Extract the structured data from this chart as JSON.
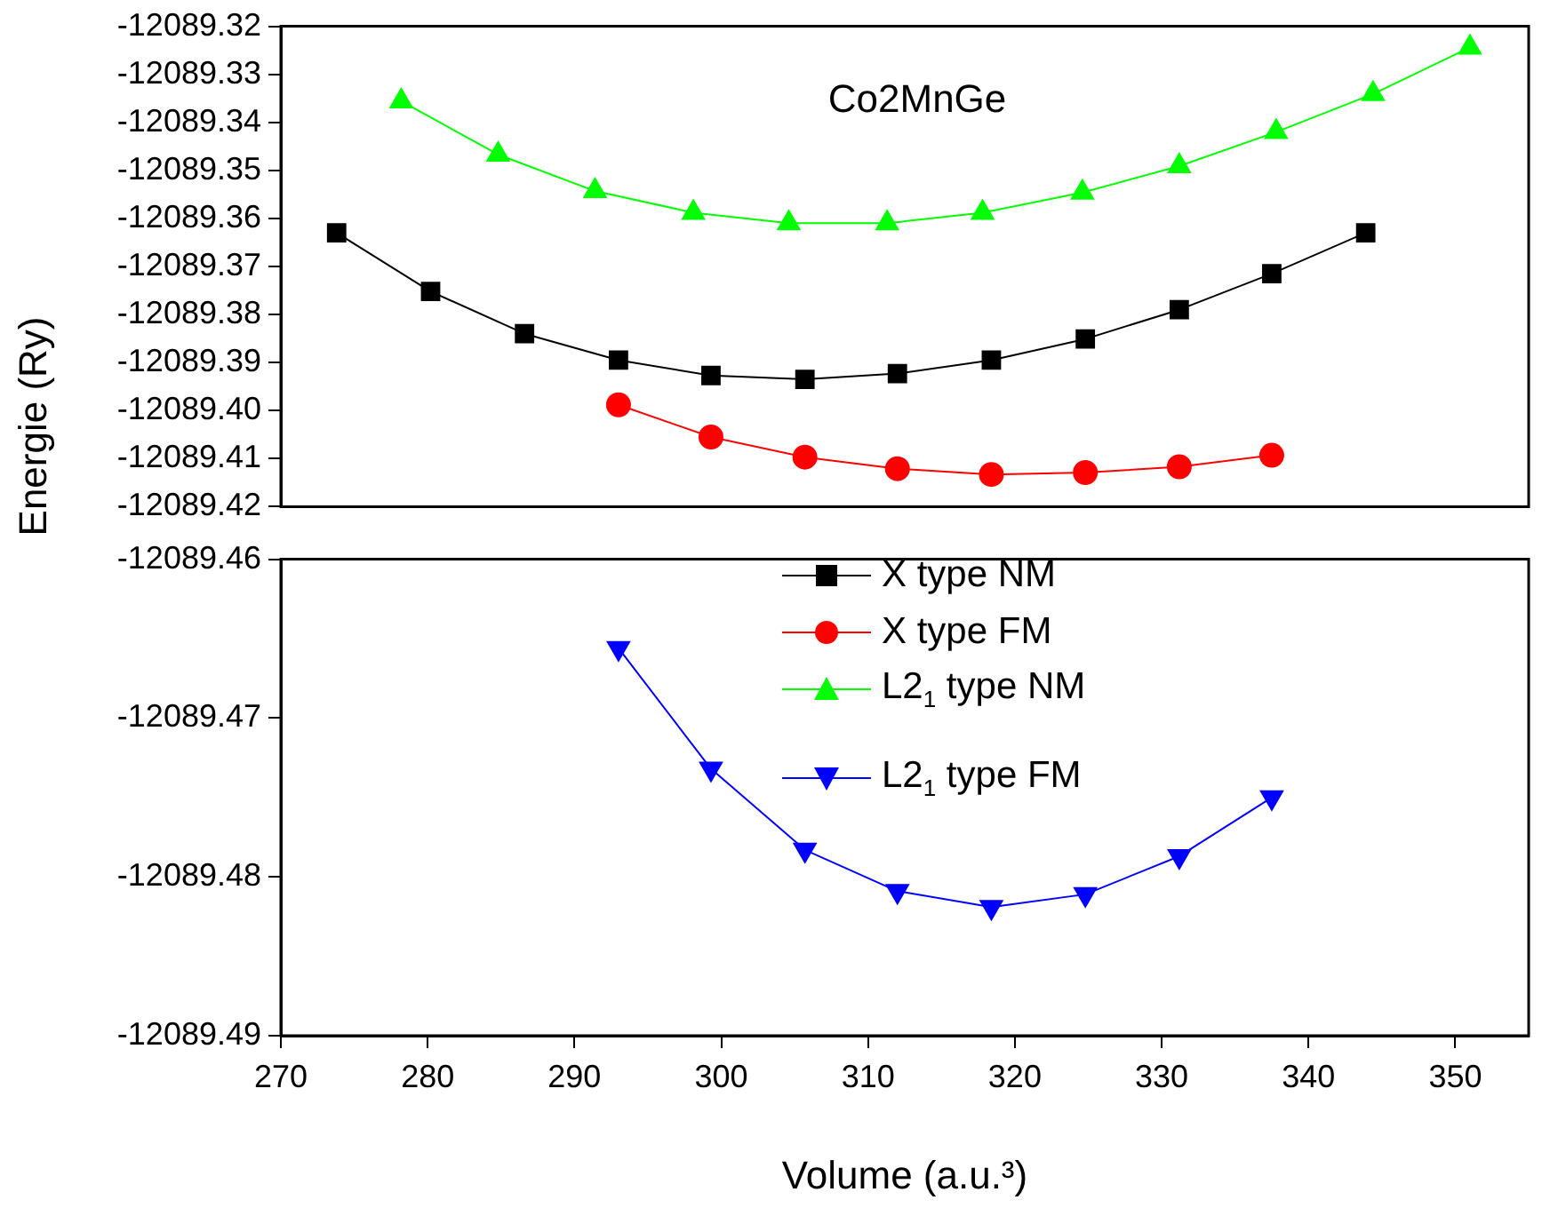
{
  "chart_data": [
    {
      "type": "line",
      "ylabel": "Energie (Ry)",
      "annotations": [
        "Co2MnGe"
      ],
      "xlim": [
        270,
        355
      ],
      "xticks": [
        270,
        280,
        290,
        300,
        310,
        320,
        330,
        340,
        350
      ],
      "ylim": [
        -12089.42,
        -12089.32
      ],
      "yticks": [
        {
          "value": -12089.42,
          "label": "-12089.42"
        },
        {
          "value": -12089.41,
          "label": "-12089.41"
        },
        {
          "value": -12089.4,
          "label": "-12089.40"
        },
        {
          "value": -12089.39,
          "label": "-12089.39"
        },
        {
          "value": -12089.38,
          "label": "-12089.38"
        },
        {
          "value": -12089.37,
          "label": "-12089.37"
        },
        {
          "value": -12089.36,
          "label": "-12089.36"
        },
        {
          "value": -12089.35,
          "label": "-12089.35"
        },
        {
          "value": -12089.34,
          "label": "-12089.34"
        },
        {
          "value": -12089.33,
          "label": "-12089.33"
        },
        {
          "value": -12089.32,
          "label": "-12089.32"
        }
      ],
      "tick_labels": "y",
      "grid": false,
      "legend": "bottom",
      "line_style": "solid",
      "series": [
        {
          "name": "X type NM",
          "color": "#000000",
          "marker": "square",
          "x": [
            273.8,
            280.2,
            286.6,
            293.0,
            299.3,
            305.7,
            312.0,
            318.4,
            324.8,
            331.2,
            337.5,
            343.9
          ],
          "values": [
            -12089.363,
            -12089.3752,
            -12089.384,
            -12089.3895,
            -12089.3927,
            -12089.3935,
            -12089.3923,
            -12089.3895,
            -12089.3851,
            -12089.379,
            -12089.3715,
            -12089.363
          ]
        },
        {
          "name": "X type FM",
          "color": "#ff0000",
          "marker": "circle",
          "x": [
            293.0,
            299.3,
            305.7,
            312.0,
            318.4,
            324.8,
            331.2,
            337.5
          ],
          "values": [
            -12089.3988,
            -12089.4055,
            -12089.4097,
            -12089.4121,
            -12089.4133,
            -12089.4129,
            -12089.4117,
            -12089.4093
          ]
        },
        {
          "name": "L2$_{1}$ type NM",
          "color": "#00ff00",
          "marker": "triangle",
          "x": [
            278.2,
            284.8,
            291.4,
            298.1,
            304.6,
            311.3,
            317.8,
            324.6,
            331.2,
            337.8,
            344.4,
            351.0
          ],
          "values": [
            -12089.3356,
            -12089.3467,
            -12089.3543,
            -12089.3588,
            -12089.361,
            -12089.361,
            -12089.3588,
            -12089.3546,
            -12089.3491,
            -12089.342,
            -12089.3341,
            -12089.3244
          ]
        }
      ]
    },
    {
      "type": "line",
      "xlabel": "Volume (a.u.³)",
      "xlim": [
        270,
        355
      ],
      "xticks": [
        270,
        280,
        290,
        300,
        310,
        320,
        330,
        340,
        350
      ],
      "ylim": [
        -12089.49,
        -12089.46
      ],
      "yticks": [
        {
          "value": -12089.49,
          "label": "-12089.49"
        },
        {
          "value": -12089.48,
          "label": "-12089.48"
        },
        {
          "value": -12089.47,
          "label": "-12089.47"
        },
        {
          "value": -12089.46,
          "label": "-12089.46"
        }
      ],
      "grid": false,
      "legend": "top",
      "line_style": "solid",
      "series": [
        {
          "name": "L2$_{1}$ type FM",
          "color": "#0000ff",
          "marker": "triangle_down",
          "x": [
            293.0,
            299.3,
            305.7,
            312.0,
            318.4,
            324.8,
            331.2,
            337.5
          ],
          "values": [
            -12089.4656,
            -12089.4732,
            -12089.4783,
            -12089.4809,
            -12089.4819,
            -12089.4811,
            -12089.4787,
            -12089.475
          ]
        }
      ]
    }
  ]
}
